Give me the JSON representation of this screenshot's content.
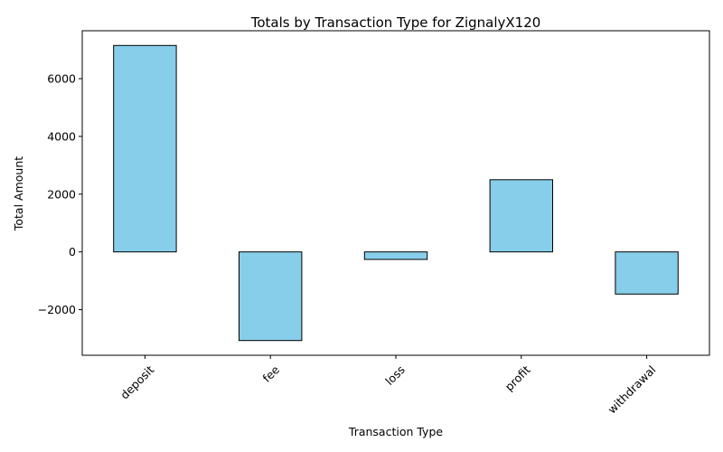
{
  "chart_data": {
    "type": "bar",
    "title": "Totals by Transaction Type for ZignalyX120",
    "xlabel": "Transaction Type",
    "ylabel": "Total Amount",
    "categories": [
      "deposit",
      "fee",
      "loss",
      "profit",
      "withdrawal"
    ],
    "values": [
      7150,
      -3070,
      -260,
      2500,
      -1460
    ],
    "ylim": [
      -3580,
      7660
    ],
    "yticks": [
      -2000,
      0,
      2000,
      4000,
      6000
    ],
    "ytick_labels": [
      "−2000",
      "0",
      "2000",
      "4000",
      "6000"
    ],
    "grid": false,
    "legend": "none",
    "bar_color": "#87ceeb",
    "bar_edge_color": "#000000"
  }
}
